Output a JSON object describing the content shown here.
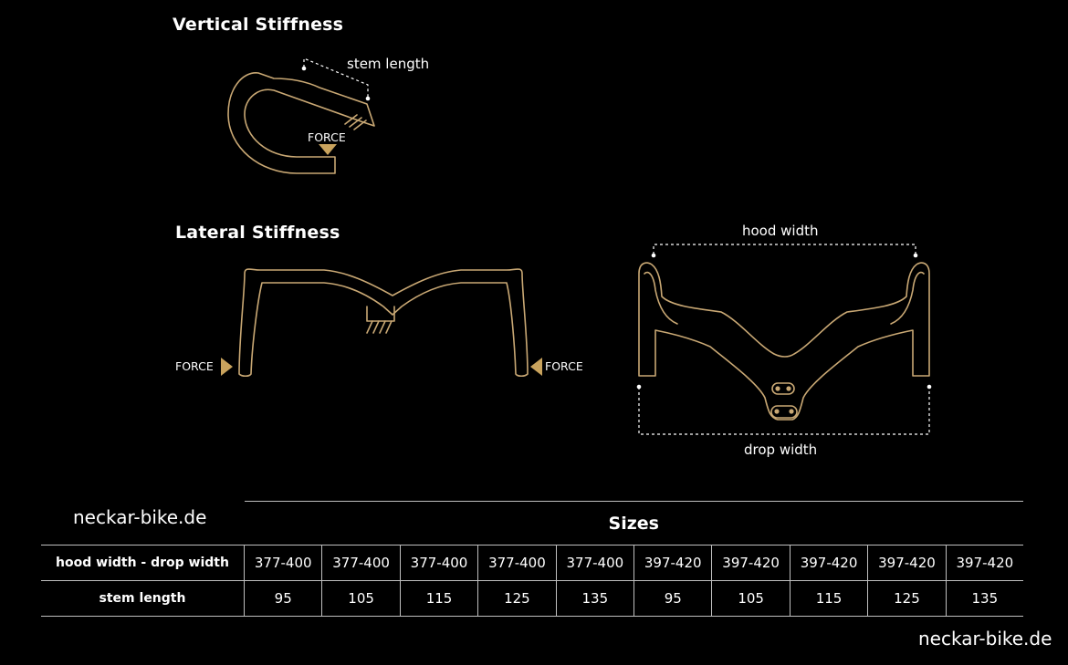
{
  "headings": {
    "vertical": "Vertical Stiffness",
    "lateral": "Lateral Stiffness"
  },
  "labels": {
    "stem_length": "stem length",
    "hood_width": "hood width",
    "drop_width": "drop width",
    "force": "FORCE"
  },
  "watermarks": {
    "table": "neckar-bike.de",
    "corner": "neckar-bike.de"
  },
  "table": {
    "title": "Sizes",
    "rows": [
      {
        "header": "hood width - drop width",
        "values": [
          "377-400",
          "377-400",
          "377-400",
          "377-400",
          "377-400",
          "397-420",
          "397-420",
          "397-420",
          "397-420",
          "397-420"
        ]
      },
      {
        "header": "stem length",
        "values": [
          "95",
          "105",
          "115",
          "125",
          "135",
          "95",
          "105",
          "115",
          "125",
          "135"
        ]
      }
    ]
  },
  "colors": {
    "background": "#000000",
    "line_art": "#c9a874",
    "force_marker": "#c9a35d",
    "text": "#ffffff",
    "rule": "#bfbfbf"
  }
}
